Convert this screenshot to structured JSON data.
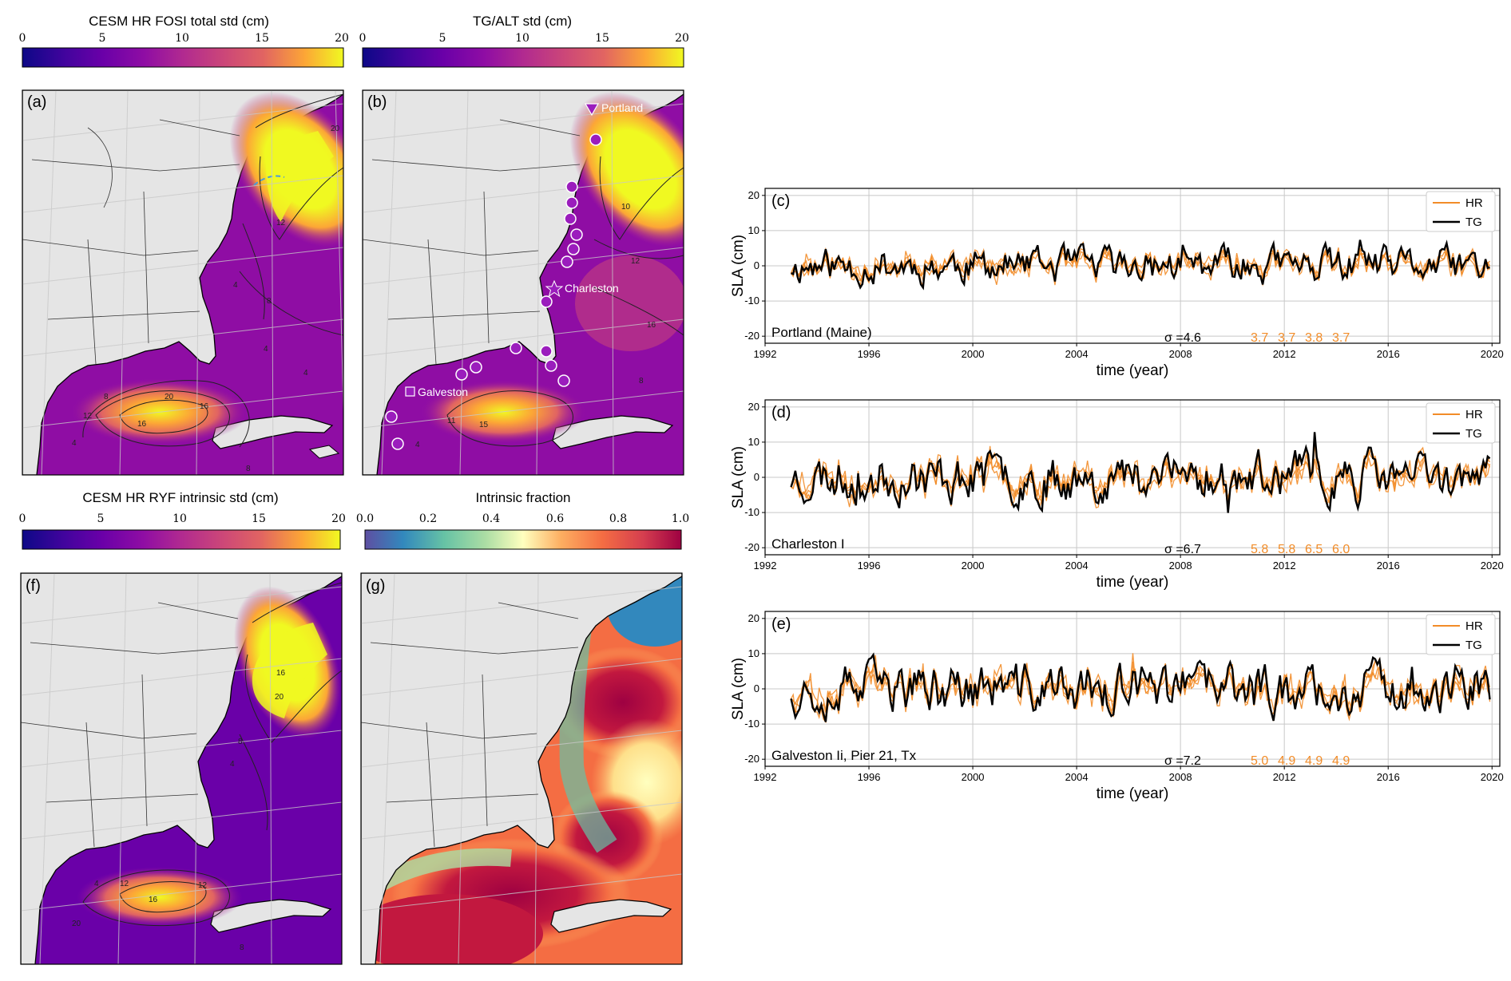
{
  "colorbars": [
    {
      "id": "a",
      "title": "CESM HR FOSI total std (cm)",
      "ticks": [
        "0",
        "5",
        "10",
        "15",
        "20"
      ],
      "cmap": "plasma"
    },
    {
      "id": "b",
      "title": "TG/ALT std (cm)",
      "ticks": [
        "0",
        "5",
        "10",
        "15",
        "20"
      ],
      "cmap": "plasma"
    },
    {
      "id": "f",
      "title": "CESM HR RYF intrinsic std (cm)",
      "ticks": [
        "0",
        "5",
        "10",
        "15",
        "20"
      ],
      "cmap": "plasma"
    },
    {
      "id": "g",
      "title": "Intrinsic fraction",
      "ticks": [
        "0.0",
        "0.2",
        "0.4",
        "0.6",
        "0.8",
        "1.0"
      ],
      "cmap": "spectral"
    }
  ],
  "maps": [
    {
      "id": "a",
      "panel_label": "(a)",
      "contour_labels": [
        "20",
        "12",
        "8",
        "4",
        "16",
        "20",
        "4",
        "8",
        "12",
        "16",
        "4",
        "4",
        "8"
      ]
    },
    {
      "id": "b",
      "panel_label": "(b)",
      "contour_labels": [
        "10",
        "11",
        "15",
        "4",
        "8",
        "12",
        "16"
      ],
      "stations": [
        {
          "name": "Portland",
          "marker": "triangle"
        },
        {
          "name": "Charleston",
          "marker": "star"
        },
        {
          "name": "Galveston",
          "marker": "square"
        }
      ]
    },
    {
      "id": "f",
      "panel_label": "(f)",
      "contour_labels": [
        "16",
        "20",
        "8",
        "4",
        "12",
        "16",
        "20",
        "4",
        "8",
        "12"
      ]
    },
    {
      "id": "g",
      "panel_label": "(g)"
    }
  ],
  "chart_data": [
    {
      "type": "line",
      "panel_label": "(c)",
      "station": "Portland (Maine)",
      "xlabel": "time (year)",
      "ylabel": "SLA (cm)",
      "xlim": [
        1992,
        2020.3
      ],
      "ylim": [
        -22,
        22
      ],
      "xticks": [
        1992,
        1996,
        2000,
        2004,
        2008,
        2012,
        2016,
        2020
      ],
      "yticks": [
        -20,
        -10,
        0,
        10,
        20
      ],
      "grid": true,
      "legend": [
        "HR",
        "TG"
      ],
      "legend_position": "top-right",
      "tg_std_label": "σ =4.6",
      "hr_std_labels": [
        "3.7",
        "3.7",
        "3.8",
        "3.7"
      ],
      "amplitude": 5.0,
      "seed": 11,
      "series": [
        {
          "name": "HR",
          "color": "#f28c28",
          "members": 4
        },
        {
          "name": "TG",
          "color": "#000000",
          "members": 1
        }
      ]
    },
    {
      "type": "line",
      "panel_label": "(d)",
      "station": "Charleston I",
      "xlabel": "time (year)",
      "ylabel": "SLA (cm)",
      "xlim": [
        1992,
        2020.3
      ],
      "ylim": [
        -22,
        22
      ],
      "xticks": [
        1992,
        1996,
        2000,
        2004,
        2008,
        2012,
        2016,
        2020
      ],
      "yticks": [
        -20,
        -10,
        0,
        10,
        20
      ],
      "grid": true,
      "legend": [
        "HR",
        "TG"
      ],
      "legend_position": "top-right",
      "tg_std_label": "σ =6.7",
      "hr_std_labels": [
        "5.8",
        "5.8",
        "6.5",
        "6.0"
      ],
      "amplitude": 6.7,
      "seed": 23,
      "series": [
        {
          "name": "HR",
          "color": "#f28c28",
          "members": 4
        },
        {
          "name": "TG",
          "color": "#000000",
          "members": 1
        }
      ]
    },
    {
      "type": "line",
      "panel_label": "(e)",
      "station": "Galveston Ii, Pier 21, Tx",
      "xlabel": "time (year)",
      "ylabel": "SLA (cm)",
      "xlim": [
        1992,
        2020.3
      ],
      "ylim": [
        -22,
        22
      ],
      "xticks": [
        1992,
        1996,
        2000,
        2004,
        2008,
        2012,
        2016,
        2020
      ],
      "yticks": [
        -20,
        -10,
        0,
        10,
        20
      ],
      "grid": true,
      "legend": [
        "HR",
        "TG"
      ],
      "legend_position": "top-right",
      "tg_std_label": "σ =7.2",
      "hr_std_labels": [
        "5.0",
        "4.9",
        "4.9",
        "4.9"
      ],
      "amplitude": 7.0,
      "seed": 37,
      "series": [
        {
          "name": "HR",
          "color": "#f28c28",
          "members": 4
        },
        {
          "name": "TG",
          "color": "#000000",
          "members": 1
        }
      ]
    }
  ]
}
